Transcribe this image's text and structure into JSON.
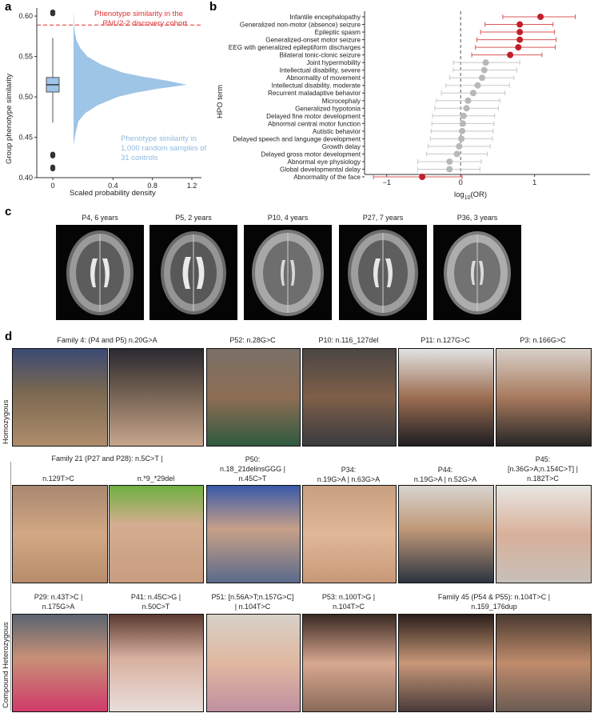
{
  "panels": {
    "a": "a",
    "b": "b",
    "c": "c",
    "d": "d"
  },
  "panel_a": {
    "ylabel": "Group phenotype similarity",
    "xlabel": "Scaled probability density",
    "discovery_label_1": "Phenotype similarity in the",
    "discovery_label_2_italic": "RNU2-2",
    "discovery_label_2_rest": " discovery cohort",
    "random_label": [
      "Phenotype similarity in",
      "1,000 random samples of",
      "31 controls"
    ],
    "discovery_color": "#e03030",
    "random_color": "#9ec4e6"
  },
  "panel_b": {
    "ylabel": "HPO term",
    "xlabel_prefix": "log",
    "xlabel_sub": "10",
    "xlabel_suffix": "(OR)",
    "significant_color": "#c0202a",
    "nonsignificant_color": "#b8b8b8"
  },
  "chart_data": [
    {
      "type": "area",
      "panel": "a",
      "ylabel": "Group phenotype similarity",
      "xlabel": "Scaled probability density",
      "ylim": [
        0.4,
        0.61
      ],
      "y_ticks": [
        "0.40",
        "0.45",
        "0.50",
        "0.55",
        "0.60"
      ],
      "x_ticks": [
        "0",
        "0.4",
        "0.8",
        "1.2"
      ],
      "boxplot": {
        "q1": 0.506,
        "median": 0.515,
        "q3": 0.524,
        "whisker_low": 0.468,
        "whisker_high": 0.573,
        "outliers": [
          0.411,
          0.413,
          0.427,
          0.429,
          0.603,
          0.605
        ]
      },
      "density": {
        "y": [
          0.44,
          0.455,
          0.47,
          0.48,
          0.49,
          0.5,
          0.505,
          0.51,
          0.515,
          0.52,
          0.525,
          0.53,
          0.54,
          0.55,
          0.56,
          0.57,
          0.58,
          0.59,
          0.6,
          0.607
        ],
        "x": [
          0.0,
          0.02,
          0.05,
          0.12,
          0.25,
          0.45,
          0.62,
          0.85,
          1.15,
          0.95,
          0.7,
          0.5,
          0.28,
          0.14,
          0.07,
          0.03,
          0.012,
          0.005,
          0.002,
          0.0
        ]
      },
      "discovery_similarity": 0.589
    },
    {
      "type": "scatter",
      "panel": "b",
      "ylabel": "HPO term",
      "xlabel": "log10(OR)",
      "xlim": [
        -1.3,
        1.75
      ],
      "x_ticks": [
        "-1",
        "0",
        "1"
      ],
      "terms": [
        {
          "name": "Infantile encephalopathy",
          "or": 1.08,
          "lo": 0.57,
          "hi": 1.55,
          "sig": true
        },
        {
          "name": "Generalized non-motor (absence) seizure",
          "or": 0.8,
          "lo": 0.33,
          "hi": 1.25,
          "sig": true
        },
        {
          "name": "Epileptic spasm",
          "or": 0.8,
          "lo": 0.27,
          "hi": 1.27,
          "sig": true
        },
        {
          "name": "Generalized-onset motor seizure",
          "or": 0.8,
          "lo": 0.22,
          "hi": 1.29,
          "sig": true
        },
        {
          "name": "EEG with generalized epileptiform discharges",
          "or": 0.78,
          "lo": 0.2,
          "hi": 1.28,
          "sig": true
        },
        {
          "name": "Bilateral tonic-clonic seizure",
          "or": 0.67,
          "lo": 0.15,
          "hi": 1.1,
          "sig": true
        },
        {
          "name": "Joint hypermobility",
          "or": 0.34,
          "lo": -0.1,
          "hi": 0.8,
          "sig": false
        },
        {
          "name": "Intellectual disability, severe",
          "or": 0.32,
          "lo": -0.1,
          "hi": 0.76,
          "sig": false
        },
        {
          "name": "Abnormality of movement",
          "or": 0.29,
          "lo": -0.15,
          "hi": 0.72,
          "sig": false
        },
        {
          "name": "Intellectual disability, moderate",
          "or": 0.23,
          "lo": -0.2,
          "hi": 0.66,
          "sig": false
        },
        {
          "name": "Recurrent maladaptive behavior",
          "or": 0.17,
          "lo": -0.26,
          "hi": 0.6,
          "sig": false
        },
        {
          "name": "Microcephaly",
          "or": 0.1,
          "lo": -0.33,
          "hi": 0.53,
          "sig": false
        },
        {
          "name": "Generalized hypotonia",
          "or": 0.08,
          "lo": -0.35,
          "hi": 0.51,
          "sig": false
        },
        {
          "name": "Delayed fine motor development",
          "or": 0.04,
          "lo": -0.38,
          "hi": 0.46,
          "sig": false
        },
        {
          "name": "Abnormal central motor function",
          "or": 0.03,
          "lo": -0.39,
          "hi": 0.45,
          "sig": false
        },
        {
          "name": "Autistic behavior",
          "or": 0.02,
          "lo": -0.4,
          "hi": 0.44,
          "sig": false
        },
        {
          "name": "Delayed speech and language development",
          "or": 0.01,
          "lo": -0.41,
          "hi": 0.43,
          "sig": false
        },
        {
          "name": "Growth delay",
          "or": -0.02,
          "lo": -0.44,
          "hi": 0.4,
          "sig": false
        },
        {
          "name": "Delayed gross motor development",
          "or": -0.05,
          "lo": -0.46,
          "hi": 0.36,
          "sig": false
        },
        {
          "name": "Abnormal eye physiology",
          "or": -0.15,
          "lo": -0.58,
          "hi": 0.28,
          "sig": false
        },
        {
          "name": "Global developmental delay",
          "or": -0.15,
          "lo": -0.58,
          "hi": 0.26,
          "sig": false
        },
        {
          "name": "Abnormality of the face",
          "or": -0.52,
          "lo": -1.18,
          "hi": 0.02,
          "sig": true
        }
      ]
    }
  ],
  "panel_c": {
    "captions": [
      "P4, 6 years",
      "P5, 2 years",
      "P10, 4 years",
      "P27, 7 years",
      "P36, 3 years"
    ]
  },
  "panel_d": {
    "homozygous_label": "Homozygous",
    "compound_label": "Compound Heterozygous",
    "row1_captions": [
      "Family 4: (P4 and P5) n.20G>A",
      "P52: n.28G>C",
      "P10: n.116_127del",
      "P11: n.127G>C",
      "P3: n.166G>C"
    ],
    "row2_family_caption": "Family 21 (P27 and P28): n.5C>T |",
    "row2_sub_captions": [
      "n.129T>C",
      "n.*9_*29del"
    ],
    "row2_captions": [
      [
        "P50:",
        "n.18_21delinsGGG |",
        "n.45C>T"
      ],
      [
        "P34:",
        "n.19G>A | n.63G>A"
      ],
      [
        "P44:",
        "n.19G>A | n.52G>A"
      ],
      [
        "P45:",
        "[n.36G>A;n.154C>T] |",
        "n.182T>C"
      ]
    ],
    "row3_captions": [
      [
        "P29: n.43T>C |",
        "n.175G>A"
      ],
      [
        "P41: n.45C>G |",
        "n.50C>T"
      ],
      [
        "P51: [n.56A>T;n.157G>C]",
        "| n.104T>C"
      ],
      [
        "P53: n.100T>G |",
        "n.104T>C"
      ],
      [
        "Family 45 (P54 & P55): n.104T>C |",
        "n.159_176dup"
      ]
    ]
  }
}
